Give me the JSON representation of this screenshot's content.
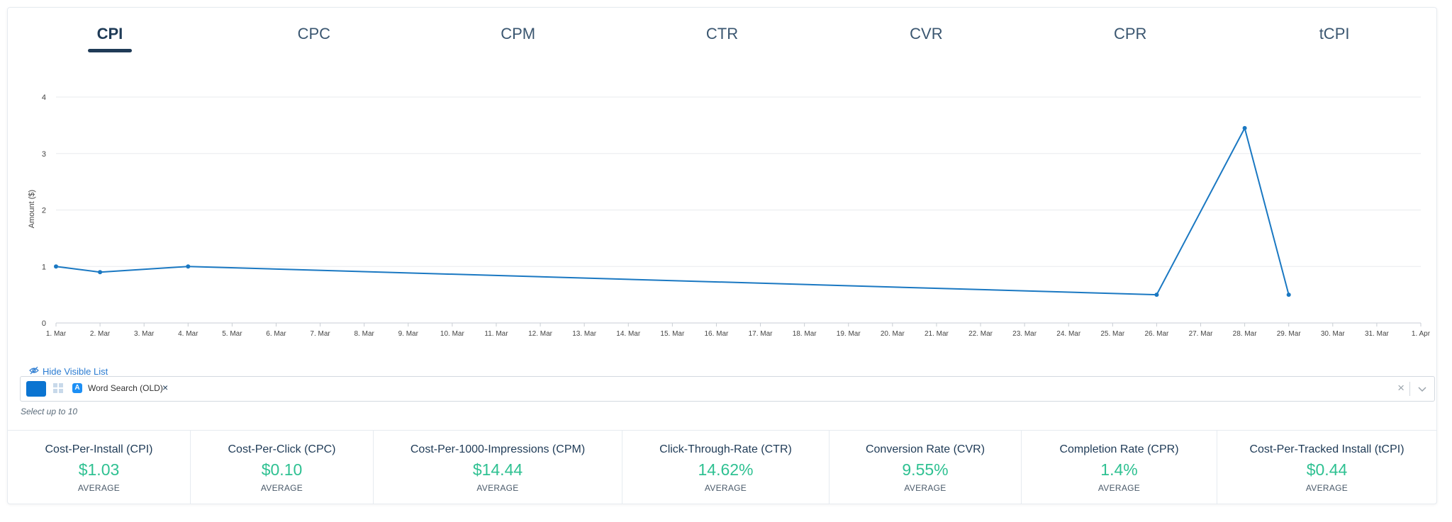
{
  "tabs": [
    {
      "label": "CPI",
      "active": true
    },
    {
      "label": "CPC",
      "active": false
    },
    {
      "label": "CPM",
      "active": false
    },
    {
      "label": "CTR",
      "active": false
    },
    {
      "label": "CVR",
      "active": false
    },
    {
      "label": "CPR",
      "active": false
    },
    {
      "label": "tCPI",
      "active": false
    }
  ],
  "chart_data": {
    "type": "line",
    "ylabel": "Amount ($)",
    "xlabel": "",
    "ylim": [
      0,
      4
    ],
    "yticks": [
      0,
      1,
      2,
      3,
      4
    ],
    "grid": true,
    "line_color": "#1a78c2",
    "categories": [
      "1. Mar",
      "2. Mar",
      "3. Mar",
      "4. Mar",
      "5. Mar",
      "6. Mar",
      "7. Mar",
      "8. Mar",
      "9. Mar",
      "10. Mar",
      "11. Mar",
      "12. Mar",
      "13. Mar",
      "14. Mar",
      "15. Mar",
      "16. Mar",
      "17. Mar",
      "18. Mar",
      "19. Mar",
      "20. Mar",
      "21. Mar",
      "22. Mar",
      "23. Mar",
      "24. Mar",
      "25. Mar",
      "26. Mar",
      "27. Mar",
      "28. Mar",
      "29. Mar",
      "30. Mar",
      "31. Mar",
      "1. Apr"
    ],
    "series": [
      {
        "points": [
          {
            "x": "1. Mar",
            "y": 1.0
          },
          {
            "x": "2. Mar",
            "y": 0.9
          },
          {
            "x": "4. Mar",
            "y": 1.0
          },
          {
            "x": "26. Mar",
            "y": 0.5
          },
          {
            "x": "28. Mar",
            "y": 3.45
          },
          {
            "x": "29. Mar",
            "y": 0.5
          }
        ]
      }
    ]
  },
  "visible_list": {
    "hide_label": "Hide Visible List",
    "selected_item": "Word Search (OLD)",
    "chip_color": "#0b74d1",
    "hint": "Select up to 10"
  },
  "stats": [
    {
      "title": "Cost-Per-Install (CPI)",
      "value": "$1.03",
      "sub": "AVERAGE"
    },
    {
      "title": "Cost-Per-Click (CPC)",
      "value": "$0.10",
      "sub": "AVERAGE"
    },
    {
      "title": "Cost-Per-1000-Impressions (CPM)",
      "value": "$14.44",
      "sub": "AVERAGE"
    },
    {
      "title": "Click-Through-Rate (CTR)",
      "value": "14.62%",
      "sub": "AVERAGE"
    },
    {
      "title": "Conversion Rate (CVR)",
      "value": "9.55%",
      "sub": "AVERAGE"
    },
    {
      "title": "Completion Rate (CPR)",
      "value": "1.4%",
      "sub": "AVERAGE"
    },
    {
      "title": "Cost-Per-Tracked Install (tCPI)",
      "value": "$0.44",
      "sub": "AVERAGE"
    }
  ]
}
